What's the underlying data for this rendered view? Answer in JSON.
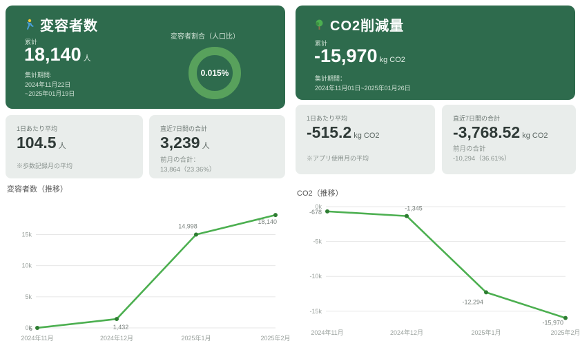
{
  "colors": {
    "panel_green": "#2e6b4d",
    "donut_ring": "#58a15c",
    "card_gray": "#e9edeb",
    "line_green": "#4caf50",
    "point_green": "#2e7d32"
  },
  "left": {
    "title": "変容者数",
    "icon": "walker-icon",
    "total_label": "累計",
    "total_value": "18,140",
    "total_unit": "人",
    "period_label": "集計期間:",
    "period_line1": "2024年11月22日",
    "period_line2": "~2025年01月19日",
    "ratio_label": "変容者割合（人口比）",
    "ratio_value": "0.015%",
    "cards": {
      "0": {
        "label": "1日あたり平均",
        "value": "104.5",
        "unit": "人",
        "note": "※歩数記録月の平均"
      },
      "1": {
        "label": "直近7日間の合計",
        "value": "3,239",
        "unit": "人",
        "sub_label": "前月の合計：",
        "sub_value": "13,864（23.36%）"
      }
    },
    "chart_title": "変容者数（推移）"
  },
  "right": {
    "title": "CO2削減量",
    "icon": "tree-icon",
    "total_label": "累計",
    "total_value": "-15,970",
    "total_unit": "kg CO2",
    "period_label": "集計期間：",
    "period_line1": "2024年11月01日~2025年01月26日",
    "cards": {
      "0": {
        "label": "1日あたり平均",
        "value": "-515.2",
        "unit": "kg CO2",
        "note": "※アプリ使用月の平均"
      },
      "1": {
        "label": "直近7日間の合計",
        "value": "-3,768.52",
        "unit": "kg CO2",
        "sub_label": "前月の合計",
        "sub_value": "-10,294（36.61%）"
      }
    },
    "chart_title": "CO2（推移）"
  },
  "chart_data": [
    {
      "type": "line",
      "title": "変容者数（推移）",
      "x": [
        "2024年11月",
        "2024年12月",
        "2025年1月",
        "2025年2月"
      ],
      "values": [
        6,
        1432,
        14998,
        18140
      ],
      "labels": [
        "6",
        "1,432",
        "14,998",
        "18,140"
      ],
      "ylim": [
        0,
        18600
      ],
      "yticks": [
        {
          "v": 0,
          "label": "0k"
        },
        {
          "v": 5000,
          "label": "5k"
        },
        {
          "v": 10000,
          "label": "10k"
        },
        {
          "v": 15000,
          "label": "15k"
        }
      ],
      "grid": true,
      "line_color": "#4caf50"
    },
    {
      "type": "line",
      "title": "CO2（推移）",
      "x": [
        "2024年11月",
        "2024年12月",
        "2025年1月",
        "2025年2月"
      ],
      "values": [
        -678,
        -1345,
        -12294,
        -15970
      ],
      "labels": [
        "-678",
        "-1,345",
        "-12,294",
        "-15,970"
      ],
      "ylim": [
        -16600,
        0
      ],
      "yticks": [
        {
          "v": 0,
          "label": "0k"
        },
        {
          "v": -5000,
          "label": "-5k"
        },
        {
          "v": -10000,
          "label": "-10k"
        },
        {
          "v": -15000,
          "label": "-15k"
        }
      ],
      "grid": true,
      "line_color": "#4caf50"
    }
  ]
}
